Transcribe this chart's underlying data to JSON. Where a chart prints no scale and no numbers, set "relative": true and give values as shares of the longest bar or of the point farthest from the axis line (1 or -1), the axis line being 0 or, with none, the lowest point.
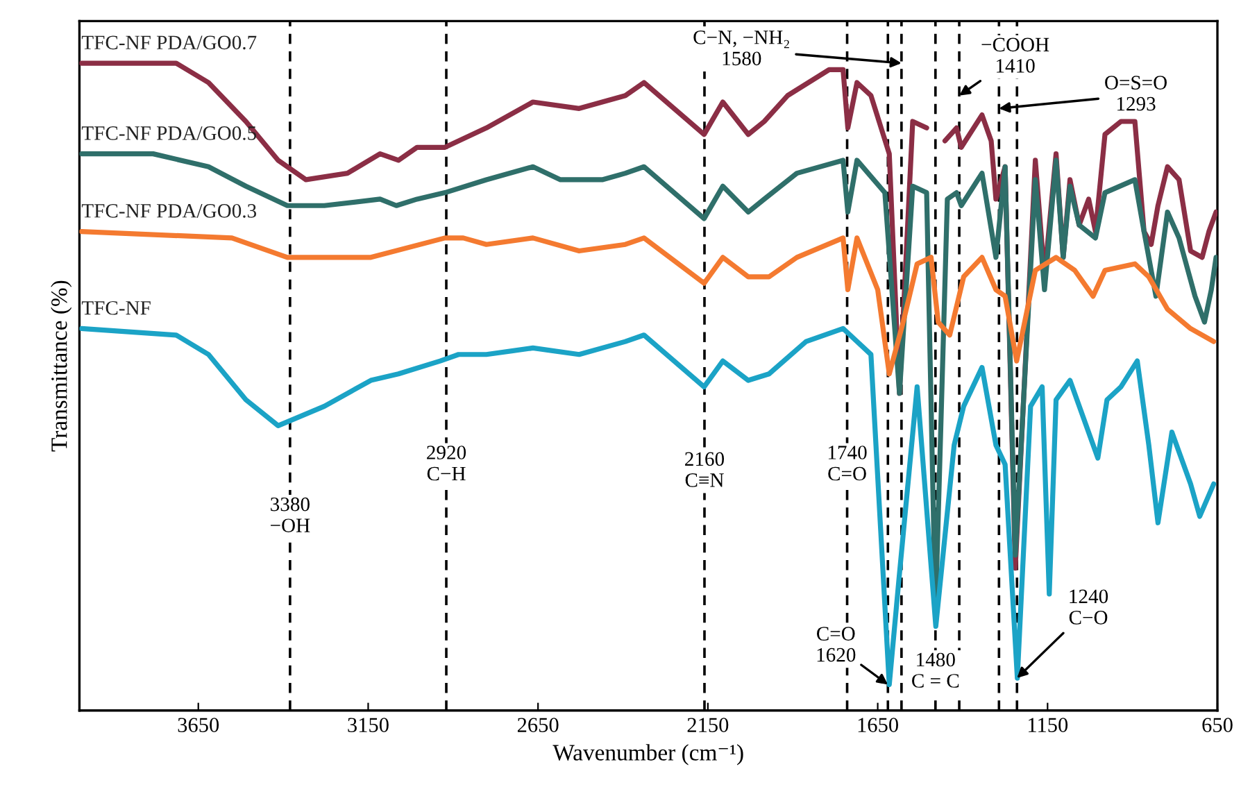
{
  "chart_data": {
    "type": "line",
    "relative": true,
    "xlabel": "Wavenumber (cm⁻¹)",
    "ylabel": "Transmittance (%)",
    "xlim": [
      4000,
      650
    ],
    "xticks": [
      3650,
      3150,
      2650,
      2150,
      1650,
      1150,
      650
    ],
    "series": [
      {
        "name": "TFC-NF PDA/GO0.7",
        "color": "#8b2e45",
        "x": [
          3994,
          3715,
          3620,
          3510,
          3415,
          3333,
          3211,
          3115,
          3061,
          3006,
          2924,
          2802,
          2665,
          2529,
          2393,
          2338,
          2161,
          2106,
          2031,
          1984,
          1915,
          1793,
          1752,
          1738,
          1711,
          1670,
          1616,
          1586,
          1547,
          1506,
          1480,
          1452,
          1418,
          1404,
          1343,
          1316,
          1302,
          1275,
          1245,
          1186,
          1159,
          1125,
          1104,
          1084,
          1057,
          1029,
          1009,
          981,
          934,
          893,
          866,
          845,
          825,
          797,
          763,
          729,
          695,
          675,
          654
        ],
        "values": [
          1.0,
          1.0,
          0.97,
          0.91,
          0.85,
          0.82,
          0.83,
          0.86,
          0.85,
          0.87,
          0.87,
          0.9,
          0.94,
          0.93,
          0.95,
          0.97,
          0.89,
          0.94,
          0.89,
          0.91,
          0.95,
          0.99,
          0.99,
          0.9,
          0.97,
          0.95,
          0.86,
          0.49,
          0.91,
          0.9,
          null,
          0.88,
          0.9,
          0.87,
          0.92,
          0.88,
          0.79,
          0.84,
          0.22,
          0.85,
          0.67,
          0.86,
          0.7,
          0.82,
          0.75,
          0.79,
          0.74,
          0.89,
          0.91,
          0.91,
          0.74,
          0.72,
          0.78,
          0.84,
          0.82,
          0.71,
          0.7,
          0.74,
          0.77
        ]
      },
      {
        "name": "TFC-NF PDA/GO0.5",
        "color": "#2f6f6a",
        "x": [
          3994,
          3783,
          3620,
          3510,
          3388,
          3279,
          3115,
          3067,
          3006,
          2924,
          2802,
          2665,
          2584,
          2461,
          2393,
          2338,
          2161,
          2106,
          2031,
          1984,
          1888,
          1752,
          1738,
          1711,
          1629,
          1586,
          1547,
          1506,
          1480,
          1445,
          1418,
          1404,
          1343,
          1302,
          1275,
          1245,
          1186,
          1159,
          1125,
          1104,
          1084,
          1057,
          1009,
          981,
          893,
          866,
          831,
          797,
          763,
          716,
          688,
          668,
          654
        ],
        "values": [
          0.86,
          0.86,
          0.84,
          0.81,
          0.78,
          0.78,
          0.79,
          0.78,
          0.79,
          0.8,
          0.82,
          0.84,
          0.82,
          0.82,
          0.83,
          0.84,
          0.76,
          0.81,
          0.77,
          0.79,
          0.83,
          0.85,
          0.77,
          0.85,
          0.8,
          0.49,
          0.81,
          0.8,
          0.15,
          0.79,
          0.8,
          0.78,
          0.83,
          0.7,
          0.84,
          0.24,
          0.82,
          0.65,
          0.85,
          0.7,
          0.81,
          0.75,
          0.73,
          0.8,
          0.82,
          0.74,
          0.64,
          0.77,
          0.73,
          0.64,
          0.6,
          0.65,
          0.7
        ]
      },
      {
        "name": "TFC-NF PDA/GO0.3",
        "color": "#f47a30",
        "x": [
          3994,
          3551,
          3388,
          3142,
          2924,
          2870,
          2802,
          2665,
          2529,
          2393,
          2338,
          2161,
          2106,
          2031,
          1970,
          1888,
          1752,
          1738,
          1711,
          1650,
          1616,
          1575,
          1534,
          1493,
          1472,
          1438,
          1397,
          1343,
          1302,
          1275,
          1241,
          1186,
          1125,
          1070,
          1016,
          981,
          893,
          852,
          797,
          729,
          661
        ],
        "values": [
          0.74,
          0.73,
          0.7,
          0.7,
          0.73,
          0.73,
          0.72,
          0.73,
          0.71,
          0.72,
          0.73,
          0.66,
          0.7,
          0.67,
          0.67,
          0.7,
          0.73,
          0.65,
          0.73,
          0.65,
          0.52,
          0.6,
          0.69,
          0.7,
          0.6,
          0.58,
          0.67,
          0.7,
          0.65,
          0.64,
          0.54,
          0.68,
          0.7,
          0.68,
          0.64,
          0.68,
          0.69,
          0.67,
          0.62,
          0.59,
          0.57
        ]
      },
      {
        "name": "TFC-NF",
        "color": "#1ba3c6",
        "x": [
          3994,
          3715,
          3620,
          3510,
          3415,
          3279,
          3142,
          3061,
          2938,
          2884,
          2802,
          2665,
          2529,
          2393,
          2338,
          2161,
          2106,
          2031,
          1970,
          1861,
          1752,
          1670,
          1616,
          1588,
          1534,
          1479,
          1425,
          1397,
          1343,
          1302,
          1275,
          1239,
          1200,
          1166,
          1145,
          1125,
          1084,
          1043,
          1002,
          975,
          934,
          886,
          852,
          825,
          784,
          729,
          702,
          661
        ],
        "values": [
          0.59,
          0.58,
          0.55,
          0.48,
          0.44,
          0.47,
          0.51,
          0.52,
          0.54,
          0.55,
          0.55,
          0.56,
          0.55,
          0.57,
          0.58,
          0.5,
          0.54,
          0.51,
          0.52,
          0.57,
          0.59,
          0.55,
          0.04,
          0.2,
          0.5,
          0.13,
          0.41,
          0.47,
          0.53,
          0.41,
          0.38,
          0.05,
          0.47,
          0.5,
          0.18,
          0.48,
          0.51,
          0.45,
          0.39,
          0.48,
          0.5,
          0.54,
          0.41,
          0.29,
          0.43,
          0.35,
          0.3,
          0.35
        ]
      }
    ],
    "ref_lines": [
      {
        "axis": "x",
        "value": 3380,
        "line_style": "dashed",
        "color": "#000000"
      },
      {
        "axis": "x",
        "value": 2920,
        "line_style": "dashed",
        "color": "#000000"
      },
      {
        "axis": "x",
        "value": 2160,
        "line_style": "dashed",
        "color": "#000000"
      },
      {
        "axis": "x",
        "value": 1740,
        "line_style": "dashed",
        "color": "#000000"
      },
      {
        "axis": "x",
        "value": 1620,
        "line_style": "dashed",
        "color": "#000000"
      },
      {
        "axis": "x",
        "value": 1580,
        "line_style": "dashed",
        "color": "#000000"
      },
      {
        "axis": "x",
        "value": 1480,
        "line_style": "dashed",
        "color": "#000000"
      },
      {
        "axis": "x",
        "value": 1410,
        "line_style": "dashed",
        "color": "#000000"
      },
      {
        "axis": "x",
        "value": 1293,
        "line_style": "dashed",
        "color": "#000000"
      },
      {
        "axis": "x",
        "value": 1240,
        "line_style": "dashed",
        "color": "#000000"
      }
    ],
    "annotations": [
      {
        "text": "3380\n−OH",
        "x": 3380,
        "y": 0.33
      },
      {
        "text": "2920\nC−H",
        "x": 2920,
        "y": 0.41
      },
      {
        "text": "2160\nC≡N",
        "x": 2160,
        "y": 0.4
      },
      {
        "text": "1740\nC=O",
        "x": 1740,
        "y": 0.41
      },
      {
        "text": "C=O\n1620",
        "x": 1620,
        "y": 0.04
      },
      {
        "text": "1480\nC = C",
        "x": 1480,
        "y": 0.09
      },
      {
        "text": "1240\nC−O",
        "x": 1240,
        "y": 0.05
      },
      {
        "text": "C−N, −NH₂\n1580",
        "x": 1580,
        "y": 1.0
      },
      {
        "text": "−COOH\n1410",
        "x": 1410,
        "y": 0.95
      },
      {
        "text": "O=S=O\n1293",
        "x": 1293,
        "y": 0.93
      }
    ]
  }
}
